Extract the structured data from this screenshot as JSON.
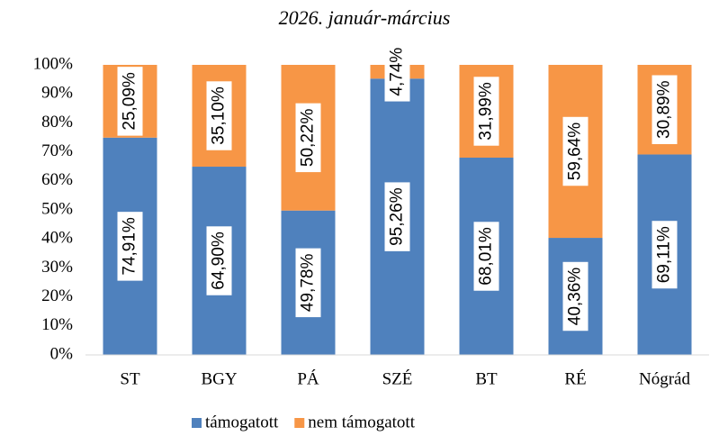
{
  "chart_data": {
    "type": "stacked_bar_100",
    "title": "2026. január-március",
    "categories": [
      "ST",
      "BGY",
      "PÁ",
      "SZÉ",
      "BT",
      "RÉ",
      "Nógrád"
    ],
    "series": [
      {
        "name": "támogatott",
        "color": "#4f81bd",
        "values": [
          74.91,
          64.9,
          49.78,
          95.26,
          68.01,
          40.36,
          69.11
        ],
        "value_labels": [
          "74,91%",
          "64,90%",
          "49,78%",
          "95,26%",
          "68,01%",
          "40,36%",
          "69,11%"
        ]
      },
      {
        "name": "nem támogatott",
        "color": "#f79646",
        "values": [
          25.09,
          35.1,
          50.22,
          4.74,
          31.99,
          59.64,
          30.89
        ],
        "value_labels": [
          "25,09%",
          "35,10%",
          "50,22%",
          "4,74%",
          "31,99%",
          "59,64%",
          "30,89%"
        ]
      }
    ],
    "ylim": [
      0,
      100
    ],
    "yticks": [
      {
        "value": 0,
        "label": "0%"
      },
      {
        "value": 10,
        "label": "10%"
      },
      {
        "value": 20,
        "label": "20%"
      },
      {
        "value": 30,
        "label": "30%"
      },
      {
        "value": 40,
        "label": "40%"
      },
      {
        "value": 50,
        "label": "50%"
      },
      {
        "value": 60,
        "label": "60%"
      },
      {
        "value": 70,
        "label": "70%"
      },
      {
        "value": 80,
        "label": "80%"
      },
      {
        "value": 90,
        "label": "90%"
      },
      {
        "value": 100,
        "label": "100%"
      }
    ],
    "grid": false,
    "legend": "bottom"
  }
}
